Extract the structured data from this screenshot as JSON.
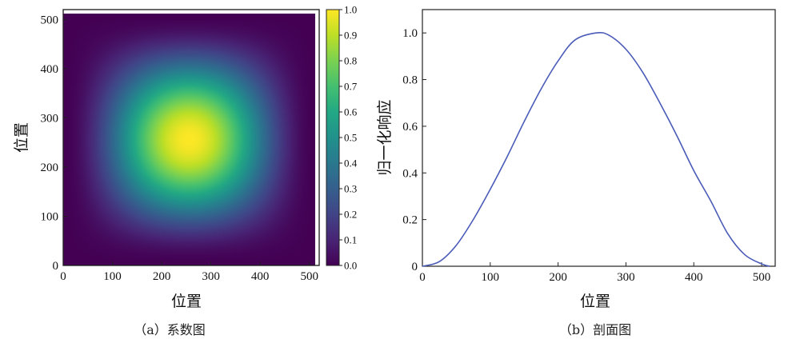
{
  "chart_data": [
    {
      "type": "heatmap",
      "caption": "（a）系数图",
      "xlabel": "位置",
      "ylabel": "位置",
      "xlim": [
        0,
        520
      ],
      "ylim": [
        0,
        520
      ],
      "data_extent": [
        0,
        512
      ],
      "xticks": [
        0,
        100,
        200,
        300,
        400,
        500
      ],
      "yticks": [
        0,
        100,
        200,
        300,
        400,
        500
      ],
      "colormap": "viridis",
      "colorbar": {
        "ticks": [
          0.0,
          0.1,
          0.2,
          0.3,
          0.4,
          0.5,
          0.6,
          0.7,
          0.8,
          0.9,
          1.0
        ],
        "tick_labels": [
          "0.0",
          "0.1",
          "0.2",
          "0.3",
          "0.4",
          "0.5",
          "0.6",
          "0.7",
          "0.8",
          "0.9",
          "1.0"
        ]
      },
      "center": [
        256,
        256
      ],
      "peak_value": 1.0,
      "edge_value": 0.0,
      "description_of_values": "separable raised-cosine window: 0.5*(1-cos(2*pi*x/512)) * 0.5*(1-cos(2*pi*y/512))"
    },
    {
      "type": "line",
      "caption": "（b）剖面图",
      "xlabel": "位置",
      "ylabel": "归一化响应",
      "xlim": [
        0,
        520
      ],
      "ylim": [
        0,
        1.1
      ],
      "xticks": [
        0,
        100,
        200,
        300,
        400,
        500
      ],
      "yticks": [
        0,
        0.2,
        0.4,
        0.6,
        0.8,
        1.0
      ],
      "ytick_labels": [
        "0",
        "0.2",
        "0.4",
        "0.6",
        "0.8",
        "1.0"
      ],
      "series": [
        {
          "color": "#4a5bb8",
          "x": [
            0,
            25,
            50,
            75,
            100,
            125,
            150,
            175,
            200,
            225,
            256,
            275,
            300,
            325,
            350,
            375,
            400,
            425,
            450,
            475,
            500,
            512
          ],
          "y": [
            0.0,
            0.02,
            0.09,
            0.2,
            0.33,
            0.47,
            0.62,
            0.76,
            0.88,
            0.97,
            1.0,
            0.99,
            0.93,
            0.83,
            0.7,
            0.56,
            0.41,
            0.28,
            0.14,
            0.05,
            0.01,
            0.0
          ]
        }
      ]
    }
  ]
}
